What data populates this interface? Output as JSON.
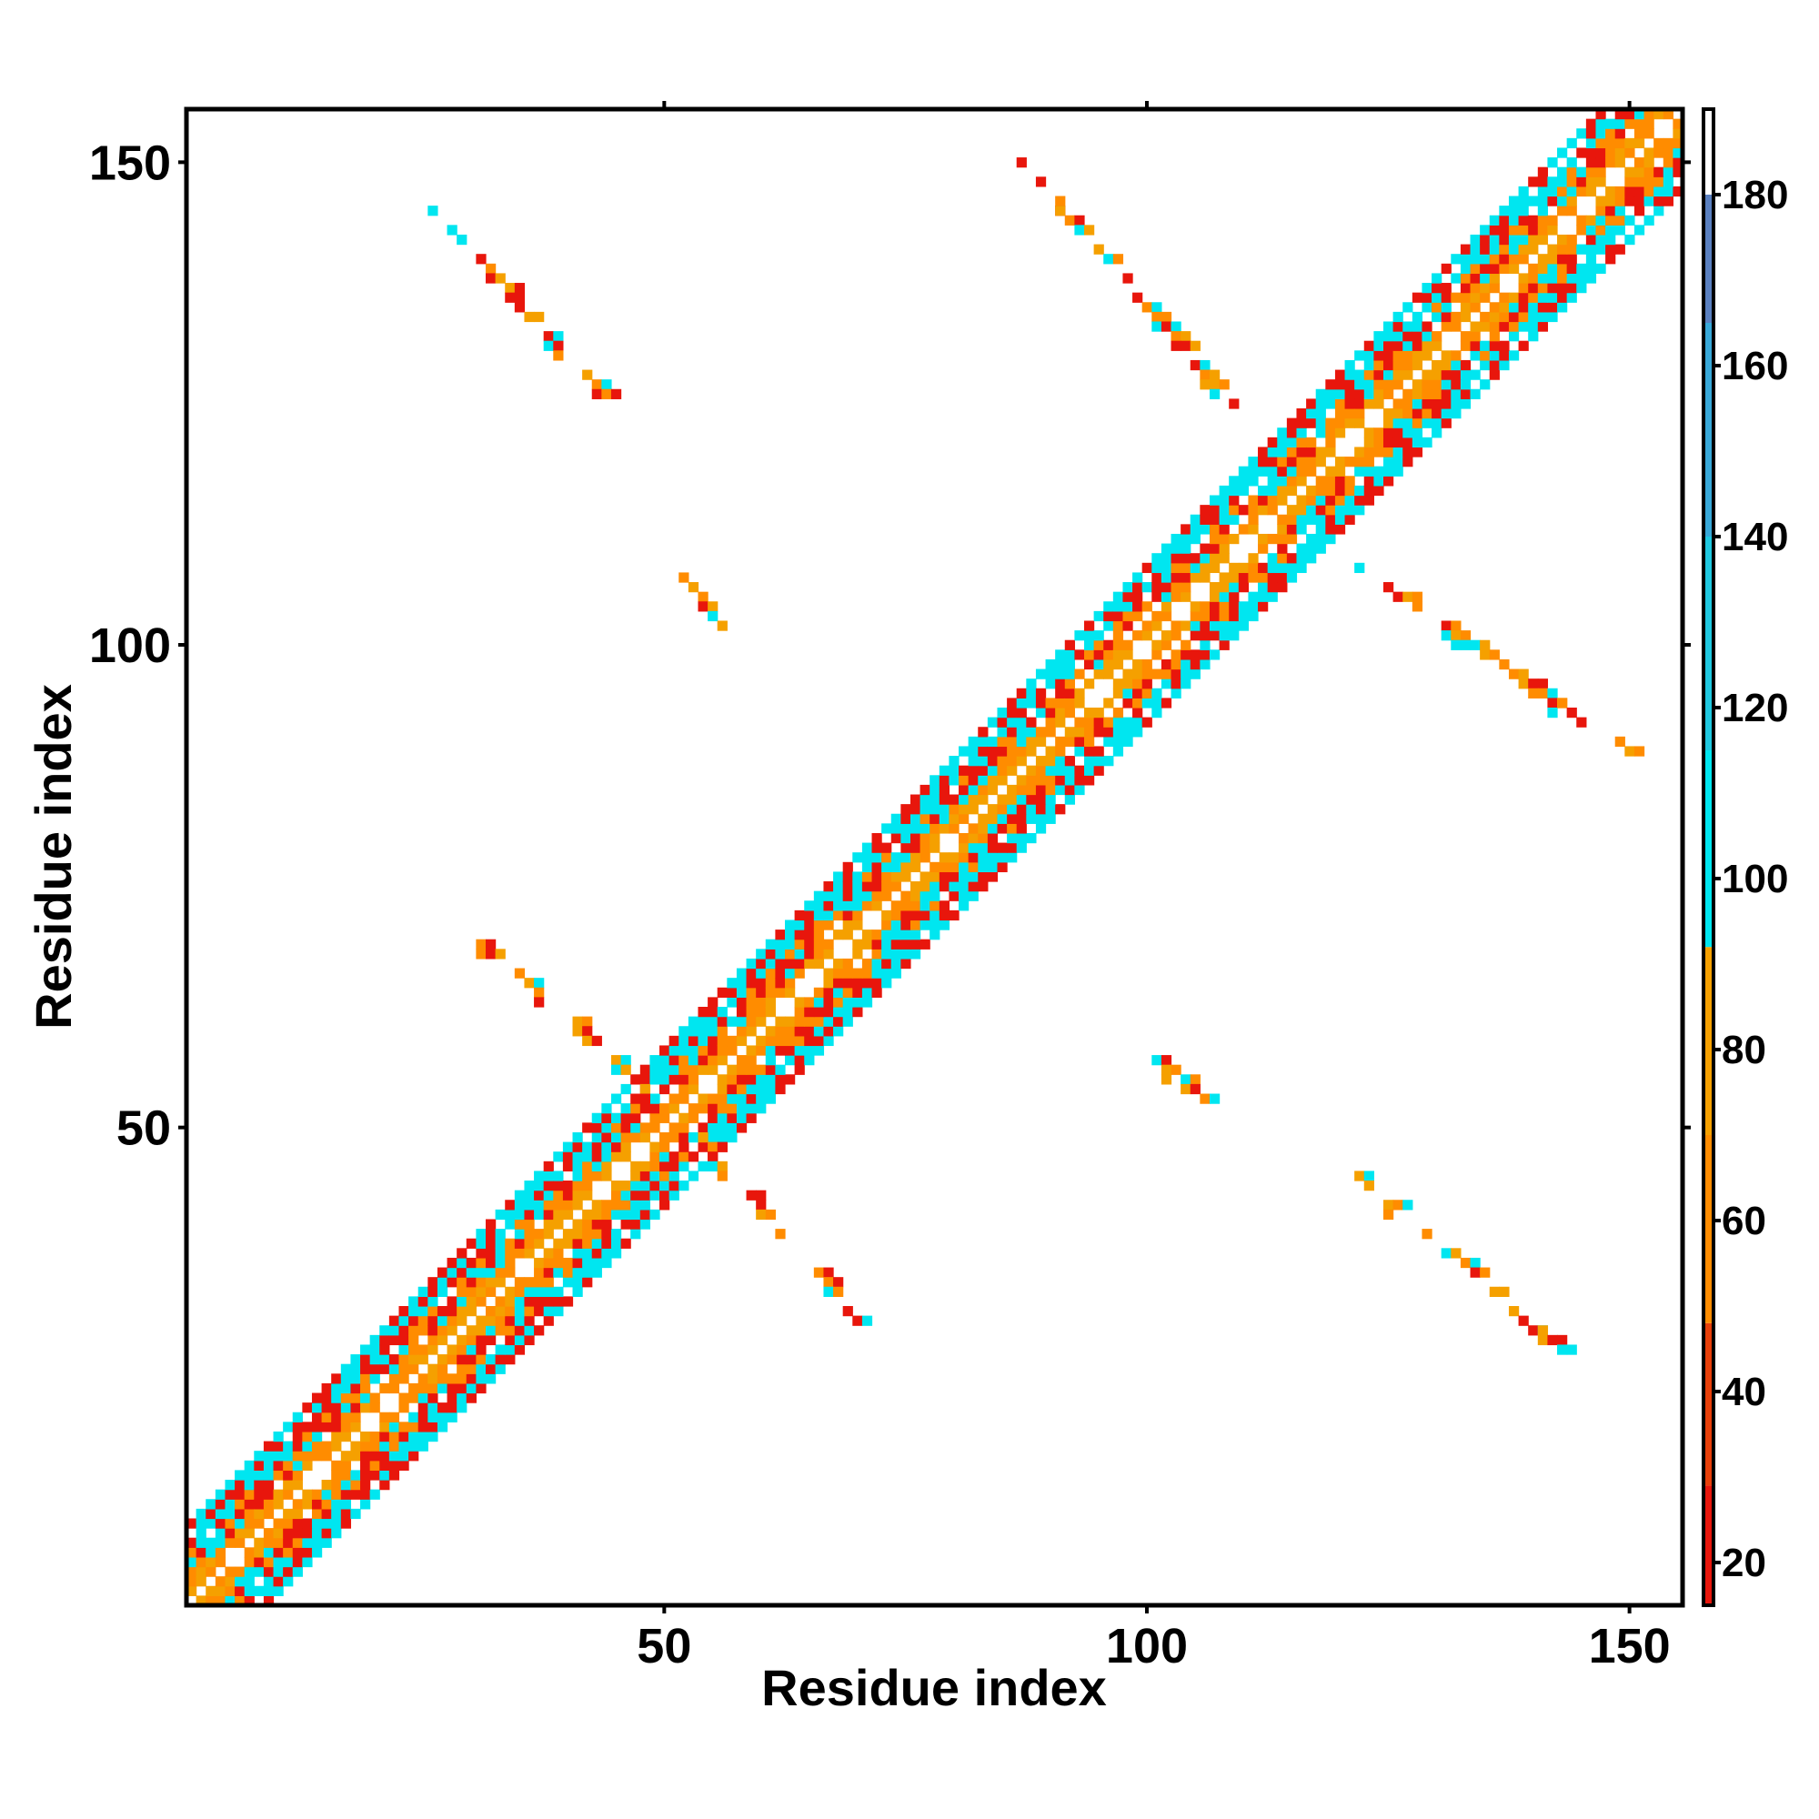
{
  "chart_data": {
    "type": "heatmap",
    "title": "",
    "xlabel": "Residue index",
    "ylabel": "Residue index",
    "xlim": [
      1,
      155
    ],
    "ylim": [
      1,
      155
    ],
    "x_ticks": [
      50,
      100,
      150
    ],
    "y_ticks": [
      50,
      100,
      150
    ],
    "legend": "colorbar-right",
    "grid": false,
    "colorbar": {
      "min": 15,
      "max": 190,
      "ticks": [
        20,
        40,
        60,
        80,
        100,
        120,
        140,
        160,
        180
      ],
      "bands": [
        {
          "from": 15,
          "to": 29,
          "color": "#e8160c"
        },
        {
          "from": 29,
          "to": 48,
          "color": "#e8400a"
        },
        {
          "from": 48,
          "to": 70,
          "color": "#ff8c00"
        },
        {
          "from": 70,
          "to": 92,
          "color": "#f5a000"
        },
        {
          "from": 92,
          "to": 115,
          "color": "#00e6f0"
        },
        {
          "from": 115,
          "to": 140,
          "color": "#20c8e0"
        },
        {
          "from": 140,
          "to": 165,
          "color": "#38a8d8"
        },
        {
          "from": 165,
          "to": 180,
          "color": "#5a80c0"
        },
        {
          "from": 180,
          "to": 190,
          "color": "#ffffff"
        }
      ]
    },
    "palette": [
      "#e8160c",
      "#ff8c00",
      "#00e6f0",
      "#f5a000"
    ],
    "contacts": {
      "diagonal_band": {
        "from": 1,
        "to": 155,
        "max_offset": 8
      },
      "off_diagonal_segments": [
        {
          "x1": 26,
          "y1": 145,
          "x2": 44,
          "y2": 126
        },
        {
          "x1": 87,
          "y1": 150,
          "x2": 109,
          "y2": 125
        },
        {
          "x1": 52,
          "y1": 107,
          "x2": 57,
          "y2": 101
        },
        {
          "x1": 122,
          "y1": 108,
          "x2": 150,
          "y2": 89
        },
        {
          "x1": 30,
          "y1": 70,
          "x2": 52,
          "y2": 51
        },
        {
          "x1": 101,
          "y1": 57,
          "x2": 108,
          "y2": 52
        },
        {
          "x1": 52,
          "y1": 51,
          "x2": 70,
          "y2": 30
        },
        {
          "x1": 122,
          "y1": 45,
          "x2": 144,
          "y2": 26
        }
      ]
    }
  }
}
